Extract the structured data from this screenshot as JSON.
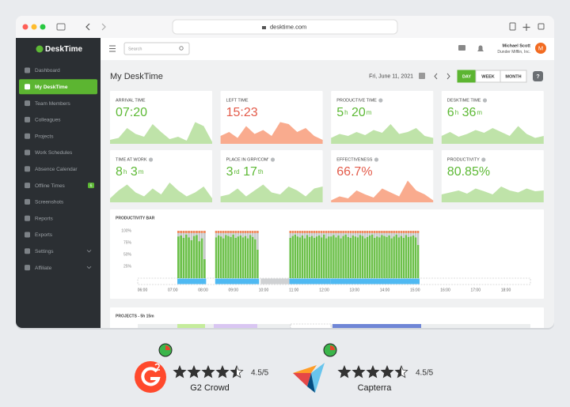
{
  "browser": {
    "url": "desktime.com"
  },
  "sidebar": {
    "logo": "DeskTime",
    "active": 1,
    "items": [
      {
        "label": "Dashboard"
      },
      {
        "label": "My DeskTime"
      },
      {
        "label": "Team Members"
      },
      {
        "label": "Colleagues"
      },
      {
        "label": "Projects"
      },
      {
        "label": "Work Schedules"
      },
      {
        "label": "Absence Calendar"
      },
      {
        "label": "Offline Times",
        "badge": "6"
      },
      {
        "label": "Screenshots"
      },
      {
        "label": "Reports"
      },
      {
        "label": "Exports"
      },
      {
        "label": "Settings",
        "expandable": true
      },
      {
        "label": "Affiliate",
        "expandable": true
      }
    ]
  },
  "topbar": {
    "search_placeholder": "Search",
    "user_name": "Michael Scott",
    "company": "Dunder Mifflin, Inc.",
    "avatar": "M"
  },
  "page": {
    "title": "My DeskTime",
    "date": "Fri, June 11, 2021",
    "views": [
      "DAY",
      "WEEK",
      "MONTH"
    ],
    "active_view": 0,
    "help": "?"
  },
  "cards": [
    {
      "label": "ARRIVAL TIME",
      "info": false,
      "color": "#5db935",
      "fill": "#bfe3a9",
      "value": [
        {
          "text": "07:20"
        }
      ],
      "sparkline": [
        10,
        15,
        40,
        25,
        18,
        50,
        30,
        12,
        18,
        8,
        55,
        45,
        5
      ]
    },
    {
      "label": "LEFT TIME",
      "info": false,
      "color": "#e35b4a",
      "fill": "#f9ab8e",
      "value": [
        {
          "text": "15:23"
        }
      ],
      "sparkline": [
        20,
        30,
        15,
        45,
        25,
        35,
        20,
        55,
        50,
        30,
        40,
        20,
        10
      ]
    },
    {
      "label": "PRODUCTIVE TIME",
      "info": true,
      "color": "#5db935",
      "fill": "#bfe3a9",
      "value": [
        {
          "text": "5",
          "unit": "h"
        },
        {
          "text": "20",
          "unit": "m"
        }
      ],
      "sparkline": [
        15,
        25,
        20,
        30,
        22,
        35,
        28,
        50,
        25,
        30,
        40,
        20,
        15
      ]
    },
    {
      "label": "DESKTIME TIME",
      "info": true,
      "color": "#5db935",
      "fill": "#bfe3a9",
      "value": [
        {
          "text": "6",
          "unit": "h"
        },
        {
          "text": "36",
          "unit": "m"
        }
      ],
      "sparkline": [
        20,
        30,
        18,
        25,
        35,
        28,
        40,
        30,
        20,
        45,
        25,
        15,
        20
      ]
    },
    {
      "label": "TIME AT WORK",
      "info": true,
      "color": "#5db935",
      "fill": "#bfe3a9",
      "value": [
        {
          "text": "8",
          "unit": "h"
        },
        {
          "text": "3",
          "unit": "m"
        }
      ],
      "sparkline": [
        10,
        30,
        45,
        25,
        15,
        35,
        20,
        50,
        30,
        15,
        25,
        40,
        10
      ]
    },
    {
      "label": "PLACE IN GRP/COM'",
      "info": true,
      "color": "#5db935",
      "fill": "#bfe3a9",
      "value": [
        {
          "text": "3",
          "unit": "rd"
        },
        {
          "text": "17",
          "unit": "th"
        }
      ],
      "sparkline": [
        15,
        20,
        35,
        15,
        30,
        45,
        25,
        20,
        40,
        30,
        15,
        35,
        40
      ]
    },
    {
      "label": "EFFECTIVENESS",
      "info": true,
      "color": "#e35b4a",
      "fill": "#f9ab8e",
      "value": [
        {
          "text": "66.7%"
        }
      ],
      "sparkline": [
        5,
        15,
        10,
        30,
        20,
        12,
        35,
        25,
        15,
        55,
        30,
        20,
        5
      ]
    },
    {
      "label": "PRODUCTIVITY",
      "info": true,
      "color": "#5db935",
      "fill": "#bfe3a9",
      "value": [
        {
          "text": "80.85%"
        }
      ],
      "sparkline": [
        20,
        25,
        30,
        22,
        35,
        28,
        20,
        40,
        30,
        25,
        35,
        28,
        30
      ]
    }
  ],
  "productivity_bar": {
    "title": "PRODUCTIVITY BAR",
    "ylim": [
      0,
      100
    ],
    "yticks": [
      {
        "value": 100,
        "label": "100%"
      },
      {
        "value": 75,
        "label": "75%"
      },
      {
        "value": 50,
        "label": "50%"
      },
      {
        "value": 25,
        "label": "25%"
      }
    ],
    "xticks": [
      "06:00",
      "07:00",
      "08:00",
      "09:00",
      "10:00",
      "11:00",
      "12:00",
      "13:00",
      "14:00",
      "15:00",
      "16:00",
      "17:00",
      "18:00"
    ],
    "blocks": [
      {
        "start": 7.15,
        "end": 8.1,
        "values": [
          88,
          90,
          85,
          92,
          86,
          80,
          89,
          91,
          78,
          84,
          40
        ]
      },
      {
        "start": 8.4,
        "end": 9.85,
        "values": [
          86,
          90,
          88,
          84,
          91,
          89,
          87,
          92,
          85,
          88,
          90,
          86,
          89,
          84,
          91,
          87,
          82,
          60
        ]
      },
      {
        "start": 10.85,
        "end": 12.2,
        "values": [
          85,
          89,
          92,
          88,
          86,
          90,
          84,
          91,
          87,
          89,
          85,
          88,
          90,
          86,
          92,
          84,
          88
        ]
      },
      {
        "start": 12.2,
        "end": 15.15,
        "values": [
          88,
          91,
          86,
          90,
          84,
          89,
          92,
          87,
          85,
          90,
          88,
          86,
          91,
          89,
          84,
          87,
          90,
          92,
          85,
          88,
          86,
          91,
          89,
          87,
          90,
          84,
          88,
          92,
          86,
          89,
          85,
          91,
          87,
          88,
          90,
          86,
          70
        ]
      }
    ],
    "breaks": [
      {
        "start": 9.9,
        "end": 10.85
      }
    ]
  },
  "projects": {
    "title": "PROJECTS - 5h 15m"
  },
  "ratings": [
    {
      "name": "G2 Crowd",
      "score": "4.5/5"
    },
    {
      "name": "Capterra",
      "score": "4.5/5"
    }
  ]
}
